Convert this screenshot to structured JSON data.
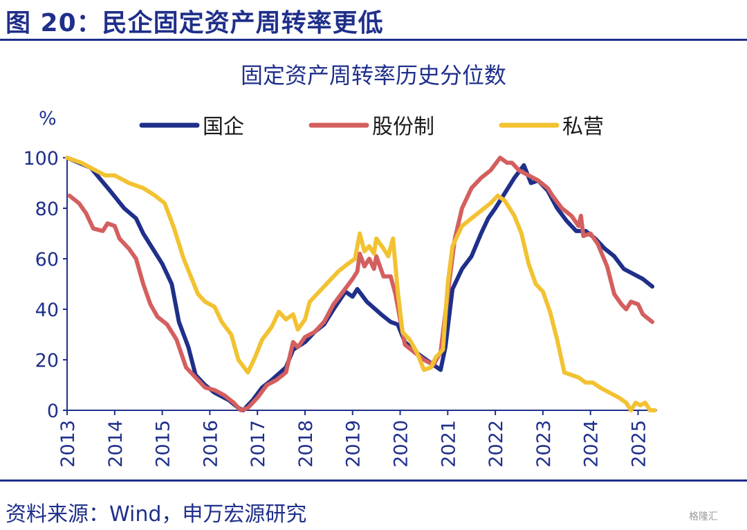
{
  "figure_title": "图 20：民企固定资产周转率更低",
  "source": "资料来源：Wind，申万宏源研究",
  "watermark": "格隆汇",
  "colors": {
    "text": "#1f2f8a",
    "axis": "#1f2f8a"
  },
  "chart_data": {
    "type": "line",
    "title": "固定资产周转率历史分位数",
    "ylabel": "%",
    "xlabel": "",
    "ylim": [
      0,
      100
    ],
    "xlim": [
      2013,
      2025.4
    ],
    "yticks": [
      0,
      20,
      40,
      60,
      80,
      100
    ],
    "xticks": [
      "2013",
      "2014",
      "2015",
      "2016",
      "2017",
      "2018",
      "2019",
      "2020",
      "2021",
      "2022",
      "2023",
      "2024",
      "2025"
    ],
    "grid": false,
    "legend": "top",
    "series": [
      {
        "name": "国企",
        "color": "#1f2f8a",
        "points": [
          [
            2013.0,
            100
          ],
          [
            2013.5,
            96
          ],
          [
            2013.9,
            87
          ],
          [
            2014.2,
            80
          ],
          [
            2014.45,
            76
          ],
          [
            2014.6,
            70
          ],
          [
            2014.8,
            64
          ],
          [
            2015.0,
            58
          ],
          [
            2015.2,
            50
          ],
          [
            2015.35,
            35
          ],
          [
            2015.55,
            25
          ],
          [
            2015.7,
            14
          ],
          [
            2015.9,
            10
          ],
          [
            2016.1,
            7
          ],
          [
            2016.4,
            4
          ],
          [
            2016.6,
            1
          ],
          [
            2016.7,
            0
          ],
          [
            2016.9,
            4
          ],
          [
            2017.1,
            9
          ],
          [
            2017.3,
            12
          ],
          [
            2017.6,
            17
          ],
          [
            2017.75,
            24
          ],
          [
            2018.0,
            27
          ],
          [
            2018.2,
            31
          ],
          [
            2018.4,
            34
          ],
          [
            2018.6,
            40
          ],
          [
            2018.85,
            47
          ],
          [
            2019.0,
            45
          ],
          [
            2019.1,
            48
          ],
          [
            2019.3,
            43
          ],
          [
            2019.6,
            38
          ],
          [
            2019.8,
            35
          ],
          [
            2019.95,
            34
          ],
          [
            2020.1,
            27
          ],
          [
            2020.4,
            22
          ],
          [
            2020.7,
            18
          ],
          [
            2020.85,
            16
          ],
          [
            2020.95,
            25
          ],
          [
            2021.1,
            48
          ],
          [
            2021.3,
            56
          ],
          [
            2021.5,
            61
          ],
          [
            2021.7,
            70
          ],
          [
            2021.85,
            76
          ],
          [
            2022.0,
            80
          ],
          [
            2022.2,
            86
          ],
          [
            2022.4,
            92
          ],
          [
            2022.6,
            97
          ],
          [
            2022.75,
            90
          ],
          [
            2022.9,
            91
          ],
          [
            2023.1,
            87
          ],
          [
            2023.3,
            80
          ],
          [
            2023.5,
            75
          ],
          [
            2023.7,
            71
          ],
          [
            2023.9,
            71
          ],
          [
            2024.1,
            68
          ],
          [
            2024.3,
            64
          ],
          [
            2024.5,
            61
          ],
          [
            2024.7,
            56
          ],
          [
            2024.9,
            54
          ],
          [
            2025.1,
            52
          ],
          [
            2025.3,
            49
          ]
        ]
      },
      {
        "name": "股份制",
        "color": "#d45f5f",
        "points": [
          [
            2013.05,
            85
          ],
          [
            2013.25,
            82
          ],
          [
            2013.4,
            78
          ],
          [
            2013.55,
            72
          ],
          [
            2013.75,
            71
          ],
          [
            2013.85,
            74
          ],
          [
            2014.0,
            73
          ],
          [
            2014.1,
            68
          ],
          [
            2014.3,
            64
          ],
          [
            2014.45,
            60
          ],
          [
            2014.6,
            50
          ],
          [
            2014.75,
            42
          ],
          [
            2014.9,
            37
          ],
          [
            2015.1,
            34
          ],
          [
            2015.3,
            28
          ],
          [
            2015.5,
            17
          ],
          [
            2015.7,
            13
          ],
          [
            2015.9,
            9
          ],
          [
            2016.1,
            8
          ],
          [
            2016.3,
            6
          ],
          [
            2016.5,
            3
          ],
          [
            2016.65,
            0
          ],
          [
            2016.8,
            1
          ],
          [
            2017.0,
            5
          ],
          [
            2017.2,
            10
          ],
          [
            2017.4,
            12
          ],
          [
            2017.6,
            15
          ],
          [
            2017.75,
            27
          ],
          [
            2017.85,
            25
          ],
          [
            2018.0,
            29
          ],
          [
            2018.2,
            31
          ],
          [
            2018.4,
            35
          ],
          [
            2018.6,
            42
          ],
          [
            2018.8,
            47
          ],
          [
            2019.0,
            52
          ],
          [
            2019.1,
            55
          ],
          [
            2019.15,
            62
          ],
          [
            2019.25,
            57
          ],
          [
            2019.35,
            60
          ],
          [
            2019.45,
            56
          ],
          [
            2019.5,
            61
          ],
          [
            2019.65,
            53
          ],
          [
            2019.8,
            53
          ],
          [
            2019.9,
            46
          ],
          [
            2020.0,
            36
          ],
          [
            2020.1,
            26
          ],
          [
            2020.3,
            23
          ],
          [
            2020.5,
            20
          ],
          [
            2020.7,
            18
          ],
          [
            2020.85,
            23
          ],
          [
            2021.0,
            46
          ],
          [
            2021.15,
            68
          ],
          [
            2021.3,
            80
          ],
          [
            2021.5,
            88
          ],
          [
            2021.7,
            92
          ],
          [
            2021.9,
            95
          ],
          [
            2022.1,
            100
          ],
          [
            2022.25,
            98
          ],
          [
            2022.35,
            98
          ],
          [
            2022.5,
            95
          ],
          [
            2022.7,
            93
          ],
          [
            2022.9,
            91
          ],
          [
            2023.1,
            88
          ],
          [
            2023.2,
            85
          ],
          [
            2023.4,
            80
          ],
          [
            2023.6,
            77
          ],
          [
            2023.75,
            73
          ],
          [
            2023.8,
            77
          ],
          [
            2023.85,
            69
          ],
          [
            2024.0,
            70
          ],
          [
            2024.15,
            66
          ],
          [
            2024.35,
            57
          ],
          [
            2024.5,
            46
          ],
          [
            2024.65,
            42
          ],
          [
            2024.75,
            40
          ],
          [
            2024.85,
            43
          ],
          [
            2025.0,
            42
          ],
          [
            2025.1,
            38
          ],
          [
            2025.3,
            35
          ]
        ]
      },
      {
        "name": "私营",
        "color": "#f2c232",
        "points": [
          [
            2013.0,
            100
          ],
          [
            2013.3,
            98
          ],
          [
            2013.6,
            95
          ],
          [
            2013.8,
            93
          ],
          [
            2014.0,
            93
          ],
          [
            2014.3,
            90
          ],
          [
            2014.6,
            88
          ],
          [
            2014.85,
            85
          ],
          [
            2015.05,
            82
          ],
          [
            2015.25,
            72
          ],
          [
            2015.45,
            60
          ],
          [
            2015.6,
            53
          ],
          [
            2015.75,
            46
          ],
          [
            2015.9,
            43
          ],
          [
            2016.1,
            41
          ],
          [
            2016.25,
            35
          ],
          [
            2016.45,
            30
          ],
          [
            2016.6,
            20
          ],
          [
            2016.8,
            15
          ],
          [
            2016.95,
            21
          ],
          [
            2017.1,
            28
          ],
          [
            2017.3,
            33
          ],
          [
            2017.45,
            39
          ],
          [
            2017.6,
            36
          ],
          [
            2017.75,
            38
          ],
          [
            2017.85,
            32
          ],
          [
            2018.0,
            36
          ],
          [
            2018.1,
            43
          ],
          [
            2018.3,
            47
          ],
          [
            2018.5,
            51
          ],
          [
            2018.7,
            55
          ],
          [
            2018.9,
            58
          ],
          [
            2019.05,
            60
          ],
          [
            2019.15,
            70
          ],
          [
            2019.25,
            63
          ],
          [
            2019.35,
            65
          ],
          [
            2019.45,
            62
          ],
          [
            2019.5,
            68
          ],
          [
            2019.65,
            64
          ],
          [
            2019.75,
            61
          ],
          [
            2019.85,
            68
          ],
          [
            2019.95,
            47
          ],
          [
            2020.05,
            31
          ],
          [
            2020.2,
            28
          ],
          [
            2020.35,
            23
          ],
          [
            2020.5,
            16
          ],
          [
            2020.65,
            17
          ],
          [
            2020.75,
            21
          ],
          [
            2020.9,
            24
          ],
          [
            2021.0,
            50
          ],
          [
            2021.1,
            65
          ],
          [
            2021.3,
            73
          ],
          [
            2021.5,
            76
          ],
          [
            2021.7,
            79
          ],
          [
            2021.9,
            82
          ],
          [
            2022.05,
            85
          ],
          [
            2022.2,
            83
          ],
          [
            2022.4,
            77
          ],
          [
            2022.55,
            70
          ],
          [
            2022.7,
            58
          ],
          [
            2022.85,
            50
          ],
          [
            2023.0,
            47
          ],
          [
            2023.15,
            39
          ],
          [
            2023.3,
            28
          ],
          [
            2023.45,
            15
          ],
          [
            2023.6,
            14
          ],
          [
            2023.75,
            13
          ],
          [
            2023.9,
            11
          ],
          [
            2024.05,
            11
          ],
          [
            2024.2,
            9
          ],
          [
            2024.4,
            7
          ],
          [
            2024.6,
            5
          ],
          [
            2024.75,
            3
          ],
          [
            2024.85,
            0
          ],
          [
            2024.95,
            3
          ],
          [
            2025.05,
            2
          ],
          [
            2025.15,
            3
          ],
          [
            2025.25,
            0
          ],
          [
            2025.35,
            0
          ]
        ]
      }
    ]
  }
}
